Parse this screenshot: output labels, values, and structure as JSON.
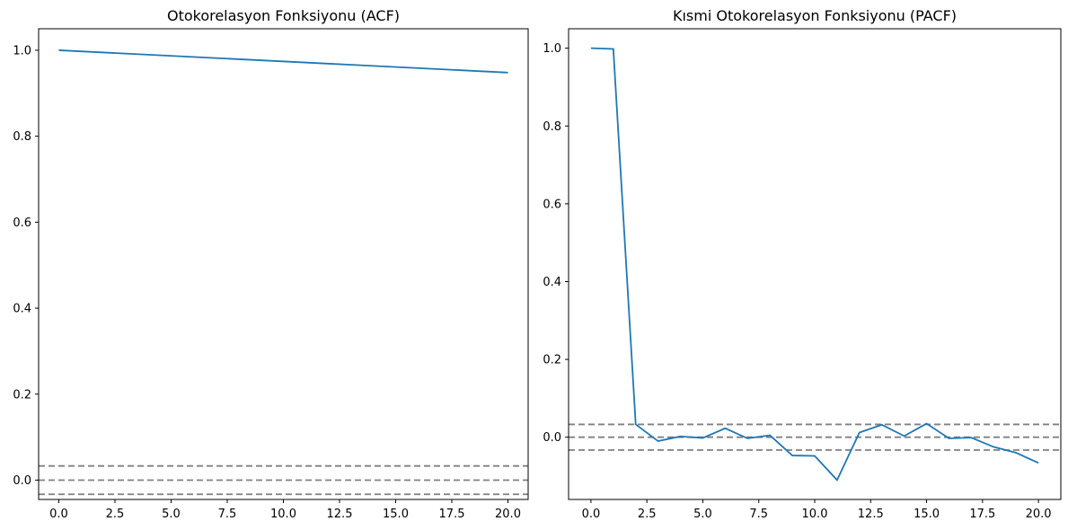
{
  "chart_data": [
    {
      "type": "line",
      "title": "Otokorelasyon Fonksiyonu (ACF)",
      "xlabel": "",
      "ylabel": "",
      "xlim": [
        -0.9,
        20.9
      ],
      "ylim": [
        -0.045,
        1.05
      ],
      "xticks": [
        0.0,
        2.5,
        5.0,
        7.5,
        10.0,
        12.5,
        15.0,
        17.5,
        20.0
      ],
      "xtick_labels": [
        "0.0",
        "2.5",
        "5.0",
        "7.5",
        "10.0",
        "12.5",
        "15.0",
        "17.5",
        "20.0"
      ],
      "yticks": [
        0.0,
        0.2,
        0.4,
        0.6,
        0.8,
        1.0
      ],
      "ytick_labels": [
        "0.0",
        "0.2",
        "0.4",
        "0.6",
        "0.8",
        "1.0"
      ],
      "x": [
        0,
        20
      ],
      "series": [
        {
          "values": [
            1.0,
            0.948
          ],
          "color": "#1f77b4"
        }
      ],
      "reference_lines": [
        {
          "y": 0.033,
          "style": "dashed",
          "color": "#808080"
        },
        {
          "y": 0.0,
          "style": "dashed",
          "color": "#808080"
        },
        {
          "y": -0.033,
          "style": "dashed",
          "color": "#808080"
        }
      ],
      "grid": false,
      "legend": "none"
    },
    {
      "type": "line",
      "title": "Kısmi Otokorelasyon Fonksiyonu (PACF)",
      "xlabel": "",
      "ylabel": "",
      "xlim": [
        -1.0,
        21.0
      ],
      "ylim": [
        -0.16,
        1.05
      ],
      "xticks": [
        0.0,
        2.5,
        5.0,
        7.5,
        10.0,
        12.5,
        15.0,
        17.5,
        20.0
      ],
      "xtick_labels": [
        "0.0",
        "2.5",
        "5.0",
        "7.5",
        "10.0",
        "12.5",
        "15.0",
        "17.5",
        "20.0"
      ],
      "yticks": [
        0.0,
        0.2,
        0.4,
        0.6,
        0.8,
        1.0
      ],
      "ytick_labels": [
        "0.0",
        "0.2",
        "0.4",
        "0.6",
        "0.8",
        "1.0"
      ],
      "x": [
        0,
        1,
        2,
        3,
        4,
        5,
        6,
        7,
        8,
        9,
        10,
        11,
        12,
        13,
        14,
        15,
        16,
        17,
        18,
        19,
        20
      ],
      "series": [
        {
          "values": [
            1.0,
            0.998,
            0.033,
            -0.01,
            0.002,
            -0.002,
            0.023,
            -0.003,
            0.005,
            -0.047,
            -0.048,
            -0.11,
            0.012,
            0.032,
            0.003,
            0.035,
            -0.003,
            -0.001,
            -0.025,
            -0.04,
            -0.066
          ],
          "color": "#1f77b4"
        }
      ],
      "reference_lines": [
        {
          "y": 0.033,
          "style": "dashed",
          "color": "#808080"
        },
        {
          "y": 0.0,
          "style": "dashed",
          "color": "#808080"
        },
        {
          "y": -0.033,
          "style": "dashed",
          "color": "#808080"
        }
      ],
      "grid": false,
      "legend": "none"
    }
  ]
}
